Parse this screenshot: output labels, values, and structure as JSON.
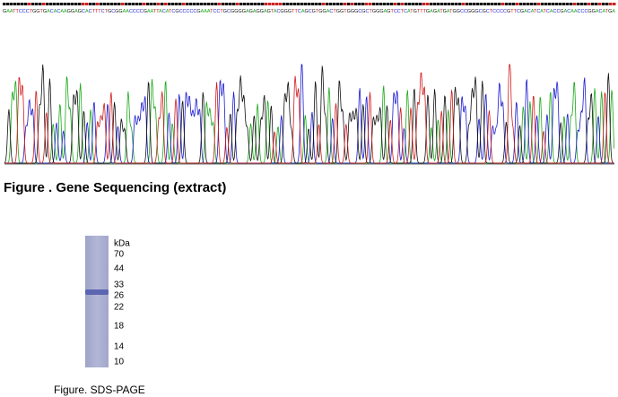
{
  "sequencing": {
    "sequence": "GAATTCCCTGGTGACACAAGGAGCACTTTCTGCGGAACCCCGAATTACATCGCCCCCGAAATCCTGCGGGGAGAGGAGTACGGGTTCAGCGTGGACTGGTGGGCGCTGGGAGTCCTCATGTTTGAGATGATGGCCGGGCGCTCCCCGTTCGACATCATCACCGACAACCCGGACATGA",
    "caption": "Figure . Gene Sequencing (extract)"
  },
  "gel": {
    "unit": "kDa",
    "markers": [
      "70",
      "44",
      "33",
      "26",
      "22",
      "18",
      "14",
      "10"
    ],
    "caption": "Figure. SDS-PAGE"
  }
}
